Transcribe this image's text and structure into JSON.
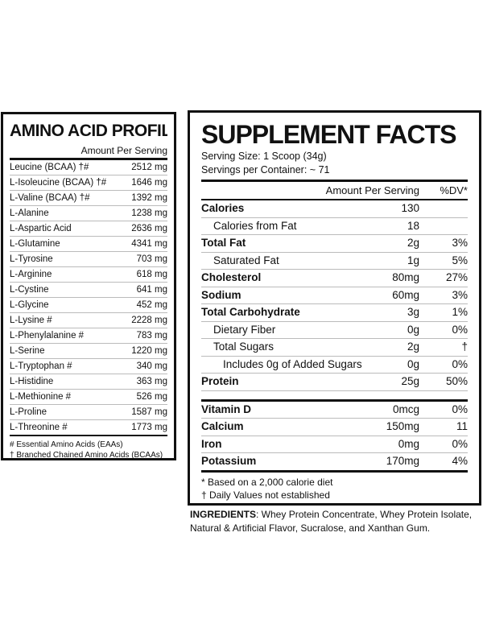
{
  "amino": {
    "title": "AMINO ACID PROFILE",
    "column": "Amount Per Serving",
    "rows": [
      {
        "name": "Leucine (BCAA) †#",
        "amount": "2512 mg"
      },
      {
        "name": "L-Isoleucine (BCAA) †#",
        "amount": "1646 mg"
      },
      {
        "name": "L-Valine (BCAA) †#",
        "amount": "1392 mg"
      },
      {
        "name": "L-Alanine",
        "amount": "1238 mg"
      },
      {
        "name": "L-Aspartic Acid",
        "amount": "2636 mg"
      },
      {
        "name": "L-Glutamine",
        "amount": "4341 mg"
      },
      {
        "name": "L-Tyrosine",
        "amount": "703 mg"
      },
      {
        "name": "L-Arginine",
        "amount": "618 mg"
      },
      {
        "name": "L-Cystine",
        "amount": "641 mg"
      },
      {
        "name": "L-Glycine",
        "amount": "452 mg"
      },
      {
        "name": "L-Lysine #",
        "amount": "2228 mg"
      },
      {
        "name": "L-Phenylalanine #",
        "amount": "783 mg"
      },
      {
        "name": "L-Serine",
        "amount": "1220 mg"
      },
      {
        "name": "L-Tryptophan #",
        "amount": "340 mg"
      },
      {
        "name": "L-Histidine",
        "amount": "363 mg"
      },
      {
        "name": "L-Methionine #",
        "amount": "526 mg"
      },
      {
        "name": "L-Proline",
        "amount": "1587 mg"
      },
      {
        "name": "L-Threonine #",
        "amount": "1773 mg"
      }
    ],
    "footnotes": [
      "# Essential Amino Acids (EAAs)",
      "† Branched Chained Amino Acids (BCAAs)"
    ]
  },
  "supplement": {
    "title": "SUPPLEMENT FACTS",
    "serving_size": "Serving Size: 1 Scoop (34g)",
    "servings_per_container": "Servings per Container: ~ 71",
    "col_amount": "Amount Per Serving",
    "col_dv": "%DV*",
    "rows": [
      {
        "name": "Calories",
        "amount": "130",
        "dv": ""
      },
      {
        "name": "Calories from Fat",
        "amount": "18",
        "dv": ""
      },
      {
        "name": "Total Fat",
        "amount": "2g",
        "dv": "3%"
      },
      {
        "name": "Saturated Fat",
        "amount": "1g",
        "dv": "5%"
      },
      {
        "name": "Cholesterol",
        "amount": "80mg",
        "dv": "27%"
      },
      {
        "name": "Sodium",
        "amount": "60mg",
        "dv": "3%"
      },
      {
        "name": "Total Carbohydrate",
        "amount": "3g",
        "dv": "1%"
      },
      {
        "name": "Dietary Fiber",
        "amount": "0g",
        "dv": "0%"
      },
      {
        "name": "Total Sugars",
        "amount": "2g",
        "dv": "†"
      },
      {
        "name": "Includes 0g of Added Sugars",
        "amount": "0g",
        "dv": "0%"
      },
      {
        "name": "Protein",
        "amount": "25g",
        "dv": "50%"
      }
    ],
    "minerals": [
      {
        "name": "Vitamin D",
        "amount": "0mcg",
        "dv": "0%"
      },
      {
        "name": "Calcium",
        "amount": "150mg",
        "dv": "11"
      },
      {
        "name": "Iron",
        "amount": "0mg",
        "dv": "0%"
      },
      {
        "name": "Potassium",
        "amount": "170mg",
        "dv": "4%"
      }
    ],
    "footnotes": [
      "* Based on a 2,000 calorie diet",
      "† Daily Values not established"
    ]
  },
  "ingredients": {
    "label": "INGREDIENTS",
    "text": ": Whey Protein Concentrate, Whey Protein Isolate, Natural & Artificial Flavor, Sucralose, and Xanthan Gum."
  }
}
